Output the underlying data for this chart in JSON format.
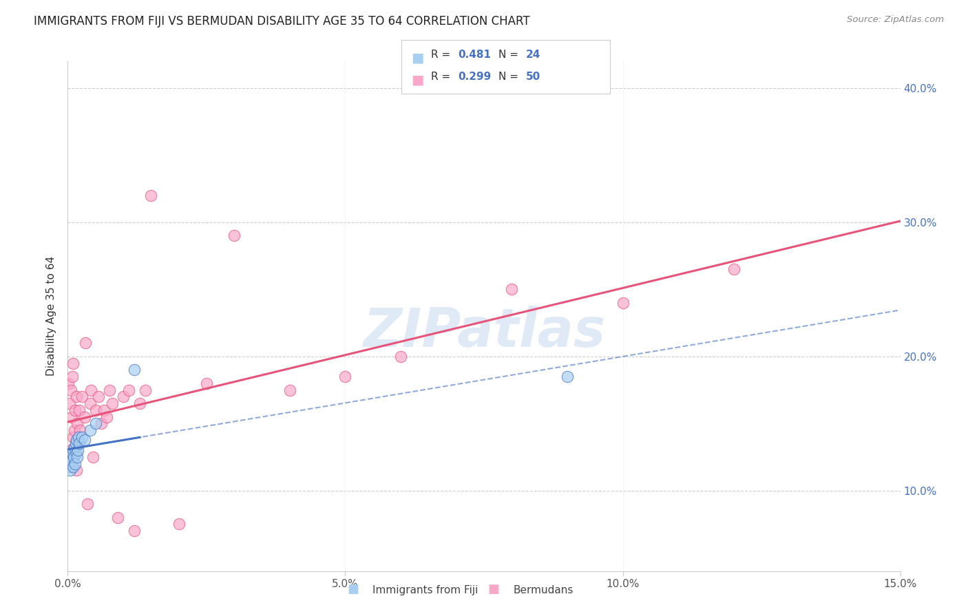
{
  "title": "IMMIGRANTS FROM FIJI VS BERMUDAN DISABILITY AGE 35 TO 64 CORRELATION CHART",
  "source": "Source: ZipAtlas.com",
  "ylabel": "Disability Age 35 to 64",
  "xlim": [
    0,
    0.15
  ],
  "ylim": [
    0.04,
    0.42
  ],
  "fiji_R": 0.481,
  "fiji_N": 24,
  "bermuda_R": 0.299,
  "bermuda_N": 50,
  "fiji_color": "#a8cff0",
  "bermuda_color": "#f9a8c9",
  "fiji_line_color": "#4472c4",
  "bermuda_line_color": "#e8537a",
  "fiji_dash_color": "#a8cff0",
  "watermark": "ZIPatlas",
  "watermark_color": "#c8daf0",
  "fiji_x": [
    0.0002,
    0.0004,
    0.0005,
    0.0006,
    0.0007,
    0.0008,
    0.0009,
    0.001,
    0.0011,
    0.0012,
    0.0013,
    0.0014,
    0.0015,
    0.0016,
    0.0017,
    0.0018,
    0.0019,
    0.002,
    0.0025,
    0.003,
    0.004,
    0.005,
    0.012,
    0.09
  ],
  "fiji_y": [
    0.118,
    0.12,
    0.115,
    0.125,
    0.122,
    0.128,
    0.118,
    0.13,
    0.125,
    0.132,
    0.12,
    0.135,
    0.128,
    0.138,
    0.125,
    0.13,
    0.14,
    0.135,
    0.14,
    0.138,
    0.145,
    0.15,
    0.19,
    0.185
  ],
  "bermuda_x": [
    0.0001,
    0.0002,
    0.0003,
    0.0004,
    0.0005,
    0.0006,
    0.0007,
    0.0008,
    0.0009,
    0.001,
    0.0011,
    0.0012,
    0.0013,
    0.0014,
    0.0015,
    0.0016,
    0.0017,
    0.0018,
    0.002,
    0.0022,
    0.0025,
    0.003,
    0.0032,
    0.0035,
    0.004,
    0.0042,
    0.0045,
    0.005,
    0.0055,
    0.006,
    0.0065,
    0.007,
    0.0075,
    0.008,
    0.009,
    0.01,
    0.011,
    0.012,
    0.013,
    0.014,
    0.015,
    0.02,
    0.025,
    0.03,
    0.04,
    0.05,
    0.06,
    0.08,
    0.1,
    0.12
  ],
  "bermuda_y": [
    0.18,
    0.125,
    0.165,
    0.12,
    0.13,
    0.175,
    0.155,
    0.185,
    0.14,
    0.195,
    0.128,
    0.145,
    0.16,
    0.135,
    0.17,
    0.115,
    0.15,
    0.138,
    0.16,
    0.145,
    0.17,
    0.155,
    0.21,
    0.09,
    0.165,
    0.175,
    0.125,
    0.16,
    0.17,
    0.15,
    0.16,
    0.155,
    0.175,
    0.165,
    0.08,
    0.17,
    0.175,
    0.07,
    0.165,
    0.175,
    0.32,
    0.075,
    0.18,
    0.29,
    0.175,
    0.185,
    0.2,
    0.25,
    0.24,
    0.265
  ],
  "legend_fiji_label": "R = 0.481   N = 24",
  "legend_bermuda_label": "R = 0.299   N = 50",
  "bottom_legend_fiji": "Immigrants from Fiji",
  "bottom_legend_bermuda": "Bermudans"
}
